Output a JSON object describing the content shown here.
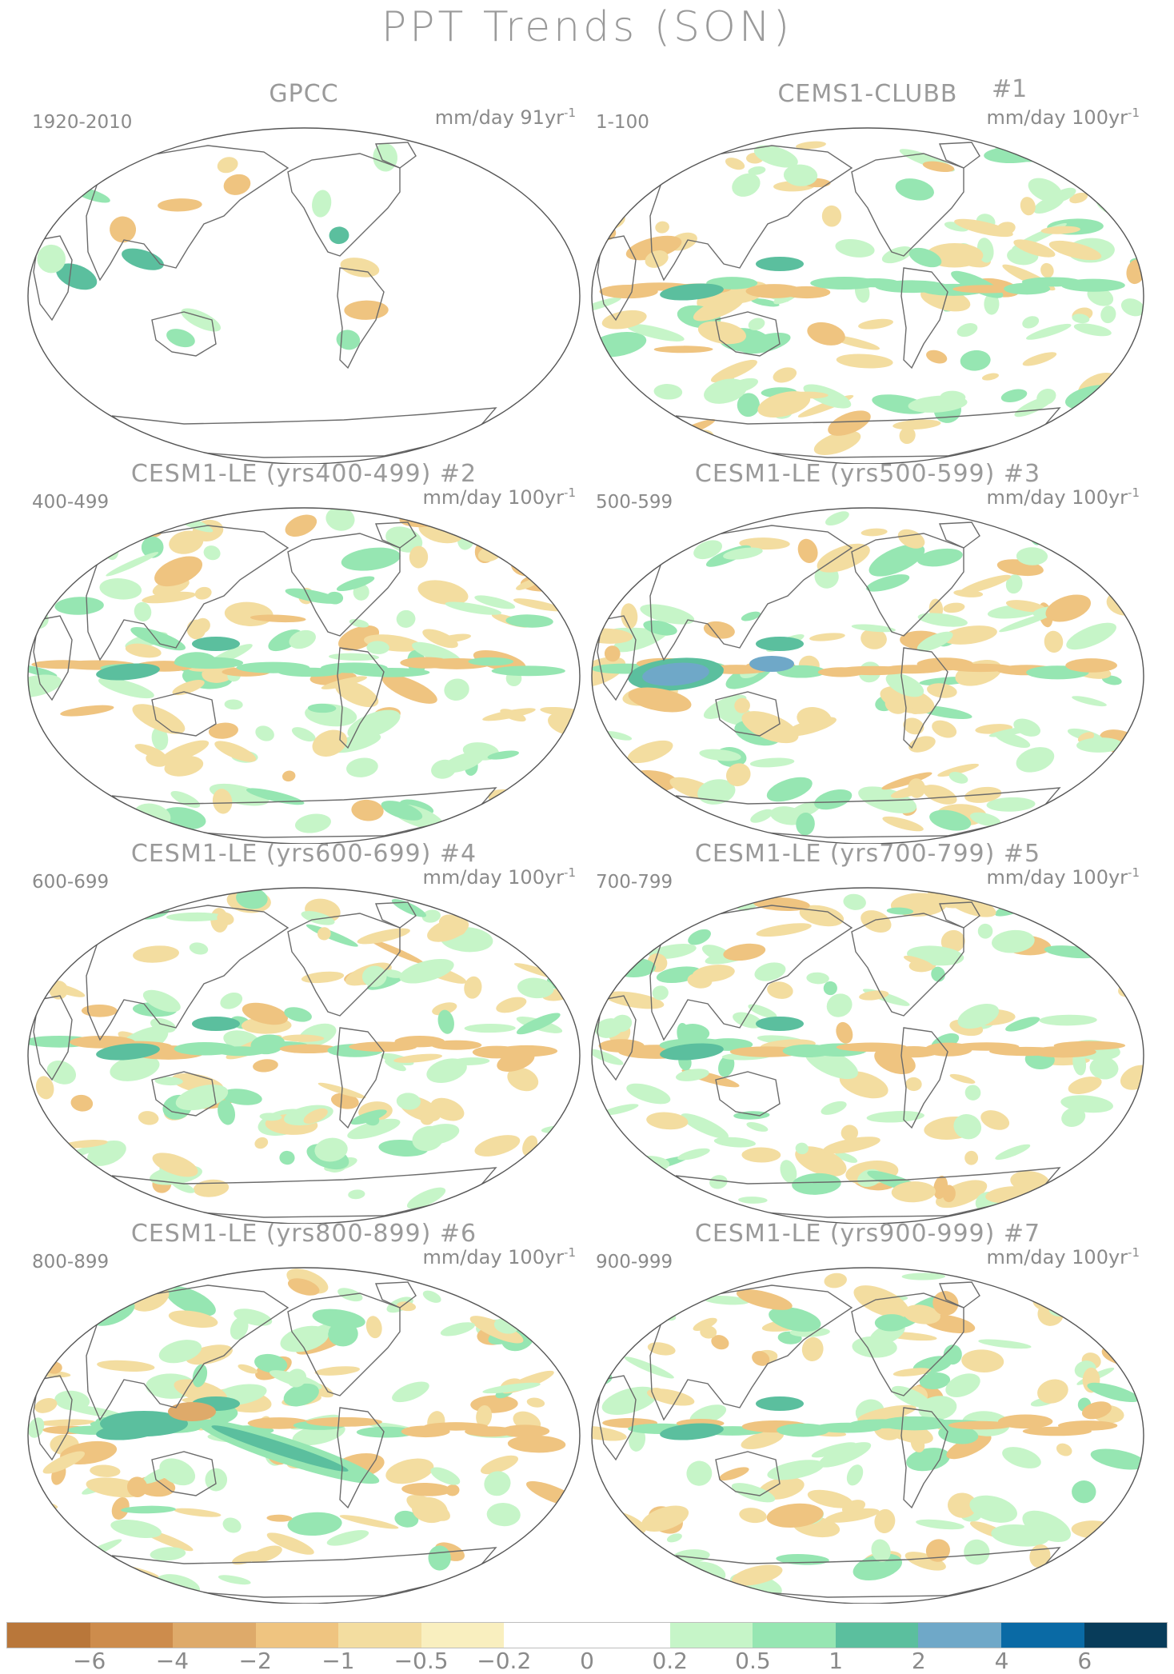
{
  "title": "PPT Trends (SON)",
  "panels": [
    {
      "title": "GPCC",
      "number": "",
      "range": "1920-2010",
      "unit": "mm/day 91yr",
      "unit_exp": "-1",
      "variant": "obs"
    },
    {
      "title": "CEMS1-CLUBB",
      "number": "#1",
      "range": "1-100",
      "unit": "mm/day 100yr",
      "unit_exp": "-1",
      "variant": "model"
    },
    {
      "title": "CESM1-LE (yrs400-499) #2",
      "number": "",
      "range": "400-499",
      "unit": "mm/day 100yr",
      "unit_exp": "-1",
      "variant": "model"
    },
    {
      "title": "CESM1-LE (yrs500-599) #3",
      "number": "",
      "range": "500-599",
      "unit": "mm/day 100yr",
      "unit_exp": "-1",
      "variant": "model-strong"
    },
    {
      "title": "CESM1-LE (yrs600-699) #4",
      "number": "",
      "range": "600-699",
      "unit": "mm/day 100yr",
      "unit_exp": "-1",
      "variant": "model"
    },
    {
      "title": "CESM1-LE (yrs700-799) #5",
      "number": "",
      "range": "700-799",
      "unit": "mm/day 100yr",
      "unit_exp": "-1",
      "variant": "model"
    },
    {
      "title": "CESM1-LE (yrs800-899) #6",
      "number": "",
      "range": "800-899",
      "unit": "mm/day 100yr",
      "unit_exp": "-1",
      "variant": "model-spcz"
    },
    {
      "title": "CESM1-LE (yrs900-999) #7",
      "number": "",
      "range": "900-999",
      "unit": "mm/day 100yr",
      "unit_exp": "-1",
      "variant": "model"
    }
  ],
  "colorbar": {
    "colors": [
      "#b9773a",
      "#cd8c4c",
      "#deaa6a",
      "#efc480",
      "#f3dda0",
      "#f9efbf",
      "#ffffff",
      "#ffffff",
      "#c6f5c8",
      "#96e6b2",
      "#5bbf9e",
      "#6fa8c8",
      "#0a6aa5",
      "#083c5a"
    ],
    "labels": [
      "−6",
      "−4",
      "−2",
      "−1",
      "−0.5",
      "−0.2",
      "0",
      "0.2",
      "0.5",
      "1",
      "2",
      "4",
      "6"
    ]
  },
  "palette": {
    "land_line": "#6b6b6b",
    "dry1": "#f3dda0",
    "dry2": "#efc480",
    "dry3": "#deaa6a",
    "wet1": "#c6f5c8",
    "wet2": "#96e6b2",
    "wet3": "#5bbf9e",
    "wet4": "#6fa8c8"
  }
}
